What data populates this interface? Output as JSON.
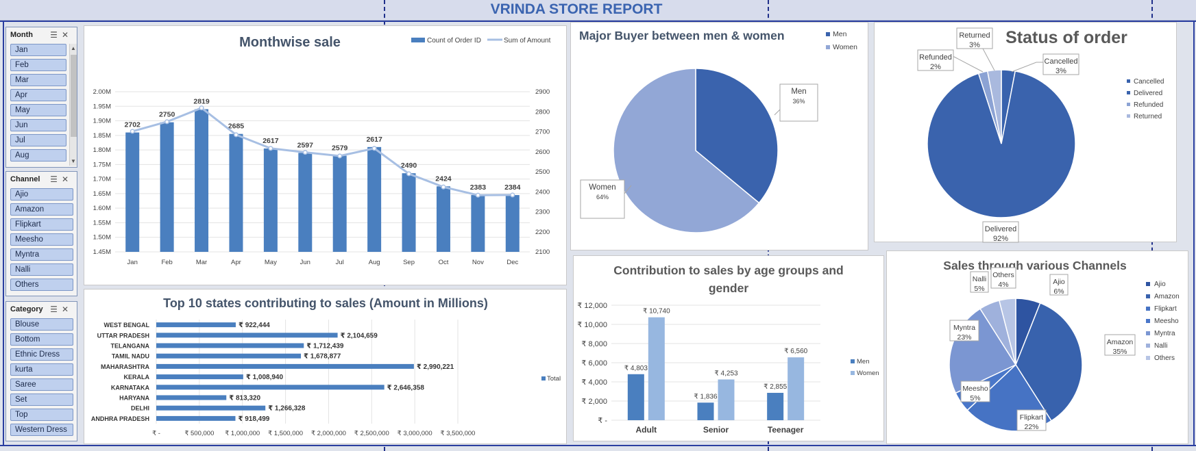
{
  "report_title": "VRINDA STORE REPORT",
  "colors": {
    "bar_primary": "#4a7fbf",
    "bar_secondary": "#97b7e0",
    "line": "#a7bfe3",
    "title_blue": "#3b64b0",
    "pie_dark": "#3a63ad",
    "pie_light": "#92a7d6"
  },
  "slicers": {
    "month": {
      "header": "Month",
      "items": [
        "Jan",
        "Feb",
        "Mar",
        "Apr",
        "May",
        "Jun",
        "Jul",
        "Aug"
      ]
    },
    "channel": {
      "header": "Channel",
      "items": [
        "Ajio",
        "Amazon",
        "Flipkart",
        "Meesho",
        "Myntra",
        "Nalli",
        "Others"
      ]
    },
    "category": {
      "header": "Category",
      "items": [
        "Blouse",
        "Bottom",
        "Ethnic Dress",
        "kurta",
        "Saree",
        "Set",
        "Top",
        "Western Dress"
      ]
    }
  },
  "chart_data": [
    {
      "id": "monthwise",
      "type": "bar",
      "title": "Monthwise sale",
      "categories": [
        "Jan",
        "Feb",
        "Mar",
        "Apr",
        "May",
        "Jun",
        "Jul",
        "Aug",
        "Sep",
        "Oct",
        "Nov",
        "Dec"
      ],
      "series": [
        {
          "name": "Count of Order ID",
          "type": "bar",
          "axis": "left",
          "values": [
            1.86,
            1.895,
            1.94,
            1.855,
            1.805,
            1.79,
            1.78,
            1.81,
            1.72,
            1.675,
            1.645,
            1.645
          ]
        },
        {
          "name": "Sum of Amount",
          "type": "line",
          "axis": "right",
          "values": [
            2702,
            2750,
            2819,
            2685,
            2617,
            2597,
            2579,
            2617,
            2490,
            2424,
            2383,
            2384
          ]
        }
      ],
      "data_labels": [
        "2702",
        "2750",
        "2819",
        "2685",
        "2617",
        "2597",
        "2579",
        "2617",
        "2490",
        "2424",
        "2383",
        "2384"
      ],
      "ylim": [
        1.45,
        2.0
      ],
      "yticks": [
        "1.45M",
        "1.50M",
        "1.55M",
        "1.60M",
        "1.65M",
        "1.70M",
        "1.75M",
        "1.80M",
        "1.85M",
        "1.90M",
        "1.95M",
        "2.00M"
      ],
      "y2lim": [
        2100,
        2900
      ],
      "y2ticks": [
        "2100",
        "2200",
        "2300",
        "2400",
        "2500",
        "2600",
        "2700",
        "2800",
        "2900"
      ],
      "legend": "top-right",
      "grid": true
    },
    {
      "id": "gender",
      "type": "pie",
      "title": "Major Buyer between men & women",
      "labels": [
        "Men",
        "Women"
      ],
      "values": [
        36,
        64
      ],
      "value_labels": [
        "36%",
        "64%"
      ],
      "legend": "top-right"
    },
    {
      "id": "status",
      "type": "pie",
      "title": "Status of order",
      "labels": [
        "Cancelled",
        "Delivered",
        "Refunded",
        "Returned"
      ],
      "values": [
        3,
        92,
        2,
        3
      ],
      "value_labels": [
        "3%",
        "92%",
        "2%",
        "3%"
      ],
      "legend": "right"
    },
    {
      "id": "states",
      "type": "bar",
      "orientation": "horizontal",
      "title": "Top 10 states contributing to sales (Amount in Millions)",
      "categories": [
        "WEST BENGAL",
        "UTTAR PRADESH",
        "TELANGANA",
        "TAMIL NADU",
        "MAHARASHTRA",
        "KERALA",
        "KARNATAKA",
        "HARYANA",
        "DELHI",
        "ANDHRA PRADESH"
      ],
      "series": [
        {
          "name": "Total",
          "values": [
            922444,
            2104659,
            1712439,
            1678877,
            2990221,
            1008940,
            2646358,
            813320,
            1266328,
            918499
          ]
        }
      ],
      "value_labels": [
        "₹ 922,444",
        "₹ 2,104,659",
        "₹ 1,712,439",
        "₹ 1,678,877",
        "₹ 2,990,221",
        "₹ 1,008,940",
        "₹ 2,646,358",
        "₹ 813,320",
        "₹ 1,266,328",
        "₹ 918,499"
      ],
      "xlim": [
        0,
        3500000
      ],
      "xticks": [
        "₹ -",
        "₹ 500,000",
        "₹ 1,000,000",
        "₹ 1,500,000",
        "₹ 2,000,000",
        "₹ 2,500,000",
        "₹ 3,000,000",
        "₹ 3,500,000"
      ],
      "legend": "right",
      "grid": true
    },
    {
      "id": "age_gender",
      "type": "bar",
      "title": "Contribution to sales by age groups and gender",
      "title_lines": [
        "Contribution to sales by age groups and",
        "gender"
      ],
      "categories": [
        "Adult",
        "Senior",
        "Teenager"
      ],
      "series": [
        {
          "name": "Men",
          "values": [
            4803,
            1836,
            2855
          ],
          "value_labels": [
            "₹ 4,803",
            "₹ 1,836",
            "₹ 2,855"
          ]
        },
        {
          "name": "Women",
          "values": [
            10740,
            4253,
            6560
          ],
          "value_labels": [
            "₹ 10,740",
            "₹ 4,253",
            "₹ 6,560"
          ]
        }
      ],
      "ylim": [
        0,
        12000
      ],
      "yticks": [
        "₹ -",
        "₹ 2,000",
        "₹ 4,000",
        "₹ 6,000",
        "₹ 8,000",
        "₹ 10,000",
        "₹ 12,000"
      ],
      "legend": "right",
      "grid": true
    },
    {
      "id": "channels",
      "type": "pie",
      "title": "Sales through various Channels",
      "labels": [
        "Ajio",
        "Amazon",
        "Flipkart",
        "Meesho",
        "Myntra",
        "Nalli",
        "Others"
      ],
      "values": [
        6,
        35,
        22,
        5,
        23,
        5,
        4
      ],
      "value_labels": [
        "6%",
        "35%",
        "22%",
        "5%",
        "23%",
        "5%",
        "4%"
      ],
      "legend": "right"
    }
  ]
}
